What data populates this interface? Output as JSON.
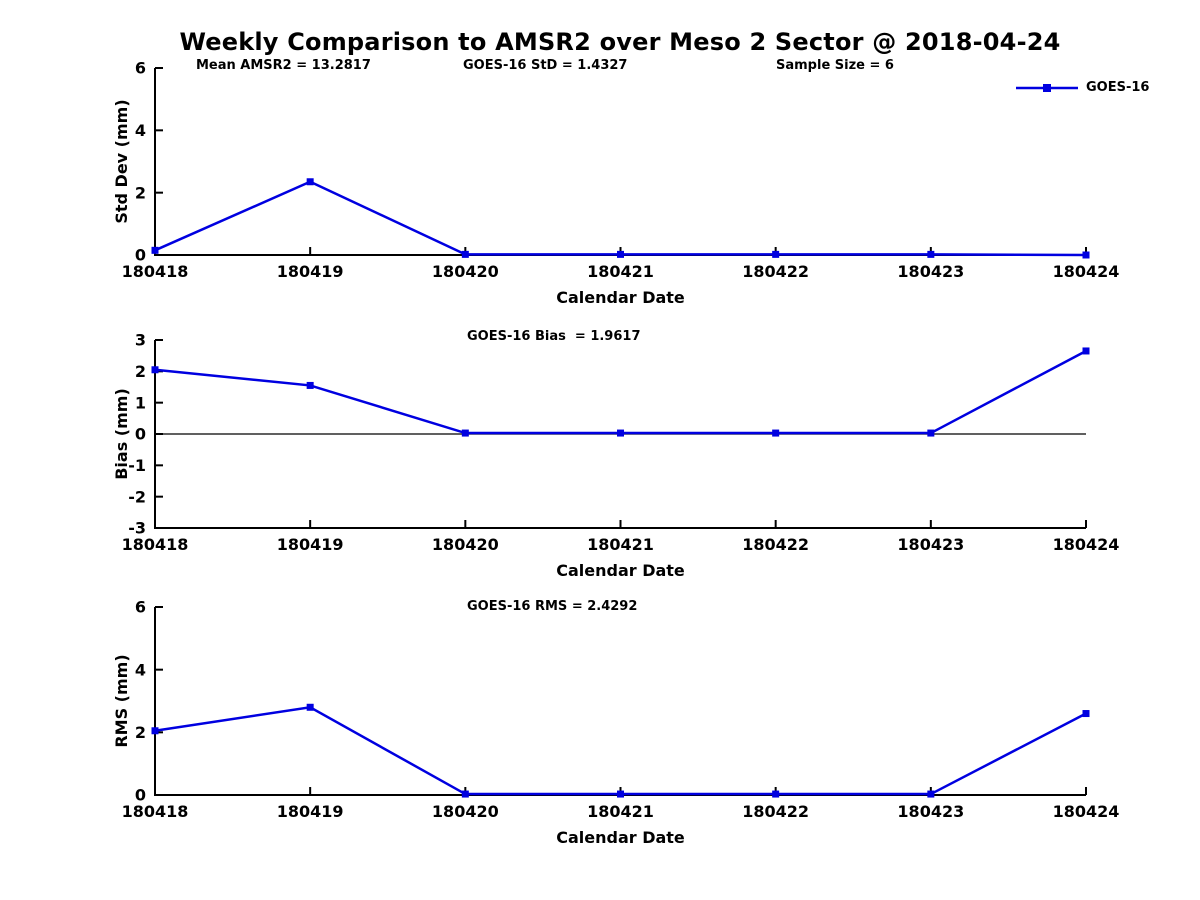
{
  "title": "Weekly Comparison to AMSR2 over Meso 2 Sector @ 2018-04-24",
  "legend": {
    "label": "GOES-16"
  },
  "colors": {
    "line": "#0000e0",
    "axis": "#000000",
    "text": "#000000"
  },
  "chart_data": [
    {
      "type": "line",
      "panel": "std-dev",
      "annotations": [
        "Mean AMSR2 = 13.2817",
        "GOES-16 StD = 1.4327",
        "Sample Size = 6"
      ],
      "ylabel": "Std Dev (mm)",
      "xlabel": "Calendar Date",
      "ylim": [
        0,
        6
      ],
      "yticks": [
        0,
        2,
        4,
        6
      ],
      "categories": [
        "180418",
        "180419",
        "180420",
        "180421",
        "180422",
        "180423",
        "180424"
      ],
      "series": [
        {
          "name": "GOES-16",
          "values": [
            0.15,
            2.35,
            0.02,
            0.02,
            0.02,
            0.02,
            0.0
          ]
        }
      ],
      "legend_position": "top-right",
      "grid": false,
      "zero_line": false
    },
    {
      "type": "line",
      "panel": "bias",
      "annotations": [
        "GOES-16 Bias  = 1.9617"
      ],
      "ylabel": "Bias (mm)",
      "xlabel": "Calendar Date",
      "ylim": [
        -3,
        3
      ],
      "yticks": [
        -3,
        -2,
        -1,
        0,
        1,
        2,
        3
      ],
      "categories": [
        "180418",
        "180419",
        "180420",
        "180421",
        "180422",
        "180423",
        "180424"
      ],
      "series": [
        {
          "name": "GOES-16",
          "values": [
            2.05,
            1.55,
            0.03,
            0.03,
            0.03,
            0.03,
            2.65
          ]
        }
      ],
      "grid": false,
      "zero_line": true
    },
    {
      "type": "line",
      "panel": "rms",
      "annotations": [
        "GOES-16 RMS = 2.4292"
      ],
      "ylabel": "RMS (mm)",
      "xlabel": "Calendar Date",
      "ylim": [
        0,
        6
      ],
      "yticks": [
        0,
        2,
        4,
        6
      ],
      "categories": [
        "180418",
        "180419",
        "180420",
        "180421",
        "180422",
        "180423",
        "180424"
      ],
      "series": [
        {
          "name": "GOES-16",
          "values": [
            2.05,
            2.8,
            0.03,
            0.03,
            0.03,
            0.03,
            2.6
          ]
        }
      ],
      "grid": false,
      "zero_line": false
    }
  ]
}
